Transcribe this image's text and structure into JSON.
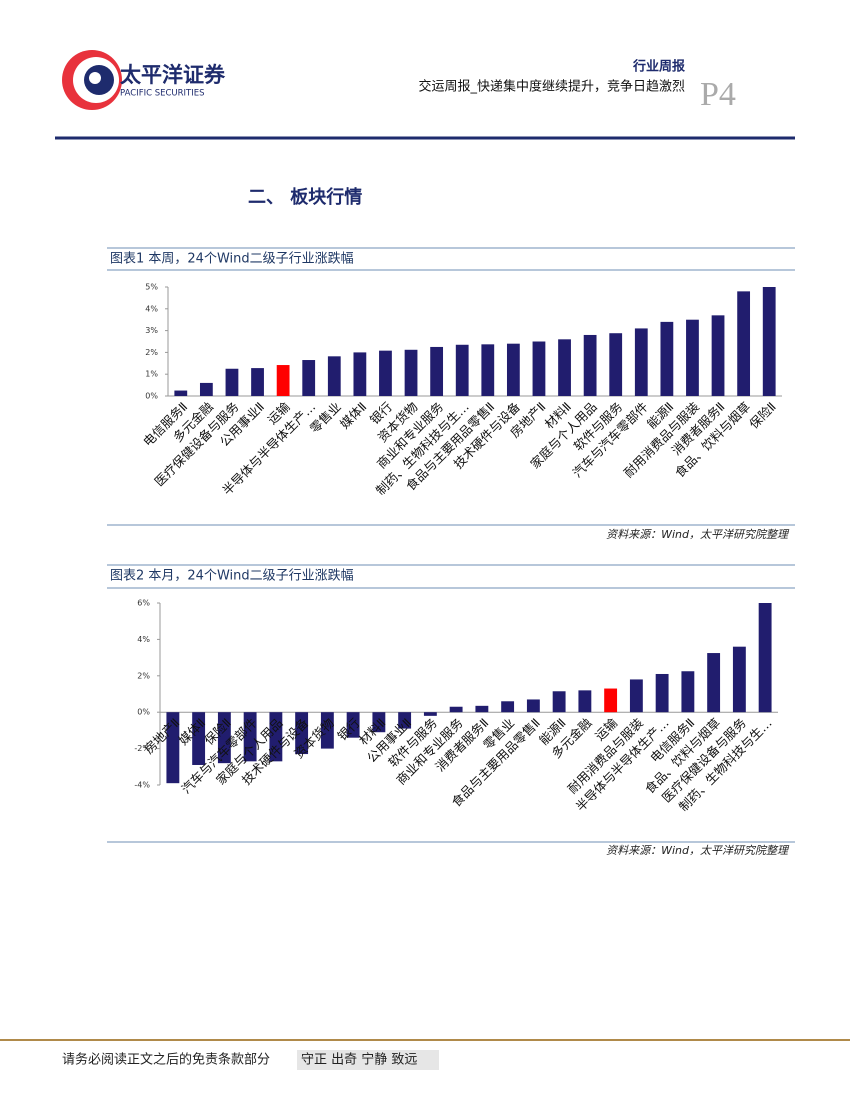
{
  "header": {
    "company_cn": "太平洋证券",
    "company_en": "PACIFIC SECURITIES",
    "report_type": "行业周报",
    "report_title": "交运周报_快递集中度继续提升，竞争日趋激烈",
    "page": "P4"
  },
  "section_title": "二、 板块行情",
  "chart_data": [
    {
      "type": "bar",
      "title": "图表1 本周，24个Wind二级子行业涨跌幅",
      "source": "资料来源：Wind，太平洋研究院整理",
      "categories": [
        "电信服务Ⅱ",
        "多元金融",
        "医疗保健设备与服务",
        "公用事业Ⅱ",
        "运输",
        "半导体与半导体生产…",
        "零售业",
        "媒体Ⅱ",
        "银行",
        "资本货物",
        "商业和专业服务",
        "制药、生物科技与生…",
        "食品与主要用品零售Ⅱ",
        "技术硬件与设备",
        "房地产Ⅱ",
        "材料Ⅱ",
        "家庭与个人用品",
        "软件与服务",
        "汽车与汽车零部件",
        "能源Ⅱ",
        "耐用消费品与服装",
        "消费者服务Ⅱ",
        "食品、饮料与烟草",
        "保险Ⅱ"
      ],
      "values": [
        0.25,
        0.6,
        1.25,
        1.28,
        1.42,
        1.65,
        1.82,
        2.0,
        2.08,
        2.12,
        2.25,
        2.35,
        2.37,
        2.4,
        2.5,
        2.6,
        2.8,
        2.88,
        3.1,
        3.4,
        3.5,
        3.7,
        4.8,
        5.0
      ],
      "colors": [
        "#211d6e",
        "#211d6e",
        "#211d6e",
        "#211d6e",
        "#ff0000",
        "#211d6e",
        "#211d6e",
        "#211d6e",
        "#211d6e",
        "#211d6e",
        "#211d6e",
        "#211d6e",
        "#211d6e",
        "#211d6e",
        "#211d6e",
        "#211d6e",
        "#211d6e",
        "#211d6e",
        "#211d6e",
        "#211d6e",
        "#211d6e",
        "#211d6e",
        "#211d6e",
        "#211d6e"
      ],
      "ylim": [
        0,
        5
      ],
      "yticks": [
        {
          "value": 0,
          "label": "0%"
        },
        {
          "value": 1,
          "label": "1%"
        },
        {
          "value": 2,
          "label": "2%"
        },
        {
          "value": 3,
          "label": "3%"
        },
        {
          "value": 4,
          "label": "4%"
        },
        {
          "value": 5,
          "label": "5%"
        }
      ]
    },
    {
      "type": "bar",
      "title": "图表2 本月，24个Wind二级子行业涨跌幅",
      "source": "资料来源：Wind，太平洋研究院整理",
      "categories": [
        "房地产Ⅱ",
        "媒体Ⅱ",
        "保险Ⅱ",
        "汽车与汽车零部件",
        "家庭与个人用品",
        "技术硬件与设备",
        "资本货物",
        "银行",
        "材料Ⅱ",
        "公用事业Ⅱ",
        "软件与服务",
        "商业和专业服务",
        "消费者服务Ⅱ",
        "零售业",
        "食品与主要用品零售Ⅱ",
        "能源Ⅱ",
        "多元金融",
        "运输",
        "耐用消费品与服装",
        "半导体与半导体生产…",
        "电信服务Ⅱ",
        "食品、饮料与烟草",
        "医疗保健设备与服务",
        "制药、生物科技与生…"
      ],
      "values": [
        -3.9,
        -2.9,
        -2.8,
        -2.7,
        -2.7,
        -2.3,
        -2.0,
        -1.4,
        -1.1,
        -0.9,
        -0.2,
        0.3,
        0.35,
        0.6,
        0.7,
        1.15,
        1.2,
        1.3,
        1.8,
        2.1,
        2.25,
        3.25,
        3.6,
        6.0
      ],
      "colors": [
        "#211d6e",
        "#211d6e",
        "#211d6e",
        "#211d6e",
        "#211d6e",
        "#211d6e",
        "#211d6e",
        "#211d6e",
        "#211d6e",
        "#211d6e",
        "#211d6e",
        "#211d6e",
        "#211d6e",
        "#211d6e",
        "#211d6e",
        "#211d6e",
        "#211d6e",
        "#ff0000",
        "#211d6e",
        "#211d6e",
        "#211d6e",
        "#211d6e",
        "#211d6e",
        "#211d6e"
      ],
      "ylim": [
        -4,
        6
      ],
      "yticks": [
        {
          "value": -4,
          "label": "-4%"
        },
        {
          "value": -2,
          "label": "-2%"
        },
        {
          "value": 0,
          "label": "0%"
        },
        {
          "value": 2,
          "label": "2%"
        },
        {
          "value": 4,
          "label": "4%"
        },
        {
          "value": 6,
          "label": "6%"
        }
      ]
    }
  ],
  "footer": {
    "disclaimer": "请务必阅读正文之后的免责条款部分",
    "motto": "守正 出奇 宁静 致远"
  }
}
